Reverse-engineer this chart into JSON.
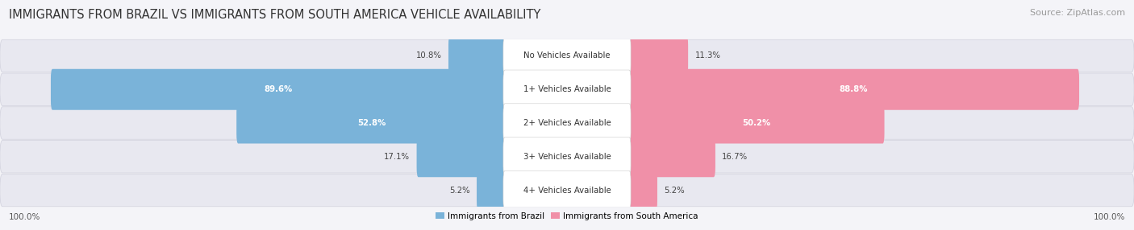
{
  "title": "IMMIGRANTS FROM BRAZIL VS IMMIGRANTS FROM SOUTH AMERICA VEHICLE AVAILABILITY",
  "source": "Source: ZipAtlas.com",
  "categories": [
    "No Vehicles Available",
    "1+ Vehicles Available",
    "2+ Vehicles Available",
    "3+ Vehicles Available",
    "4+ Vehicles Available"
  ],
  "brazil_values": [
    10.8,
    89.6,
    52.8,
    17.1,
    5.2
  ],
  "south_america_values": [
    11.3,
    88.8,
    50.2,
    16.7,
    5.2
  ],
  "brazil_color": "#7ab3d9",
  "brazil_color_dark": "#5a9abf",
  "south_america_color": "#f090a8",
  "south_america_color_dark": "#e06080",
  "row_bg_color": "#ebebf2",
  "row_bg_color_alt": "#e0e0ea",
  "brazil_label": "Immigrants from Brazil",
  "south_america_label": "Immigrants from South America",
  "title_fontsize": 10.5,
  "source_fontsize": 8,
  "footer_label": "100.0%",
  "bg_color": "#f4f4f8"
}
